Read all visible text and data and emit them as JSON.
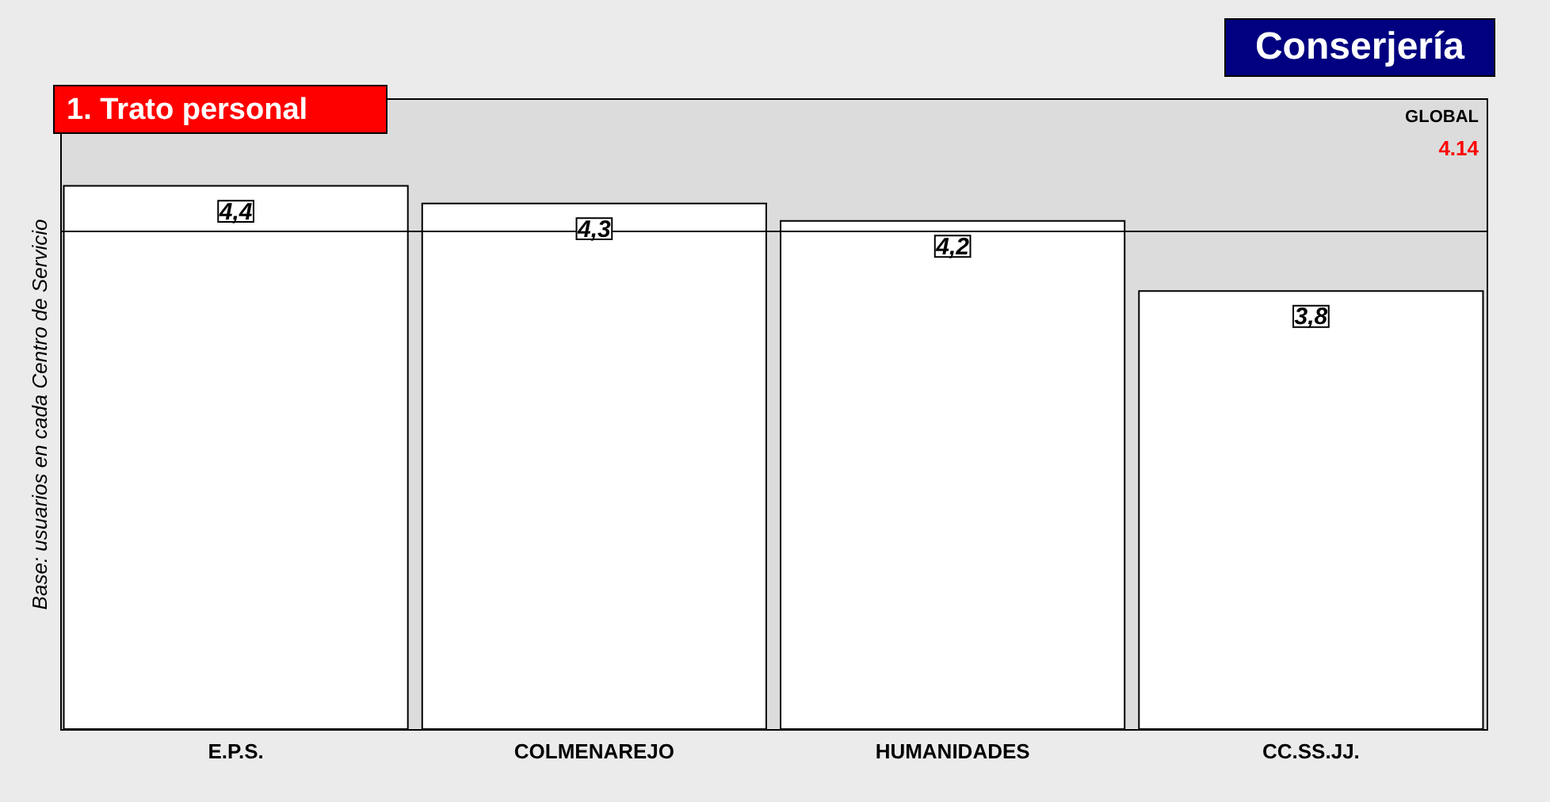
{
  "chart_data": {
    "type": "bar",
    "title": "Conserjería",
    "subtitle": "1.  Trato personal",
    "ylabel": "Base: usuarios en cada Centro de Servicio",
    "categories": [
      "E.P.S.",
      "COLMENAREJO",
      "HUMANIDADES",
      "CC.SS.JJ."
    ],
    "values": [
      4.4,
      4.3,
      4.2,
      3.8
    ],
    "color": "#ffffff",
    "value_labels": [
      "4,4",
      "4,3",
      "4,2",
      "3,8"
    ],
    "ylim": [
      1.3,
      4.9
    ],
    "grid": false,
    "tick_labels": "x",
    "ref_lines": [
      {
        "axis": "y",
        "value": 4.14,
        "label": "GLOBAL",
        "color": "#000000"
      }
    ],
    "annotations": [
      "4.14"
    ]
  }
}
